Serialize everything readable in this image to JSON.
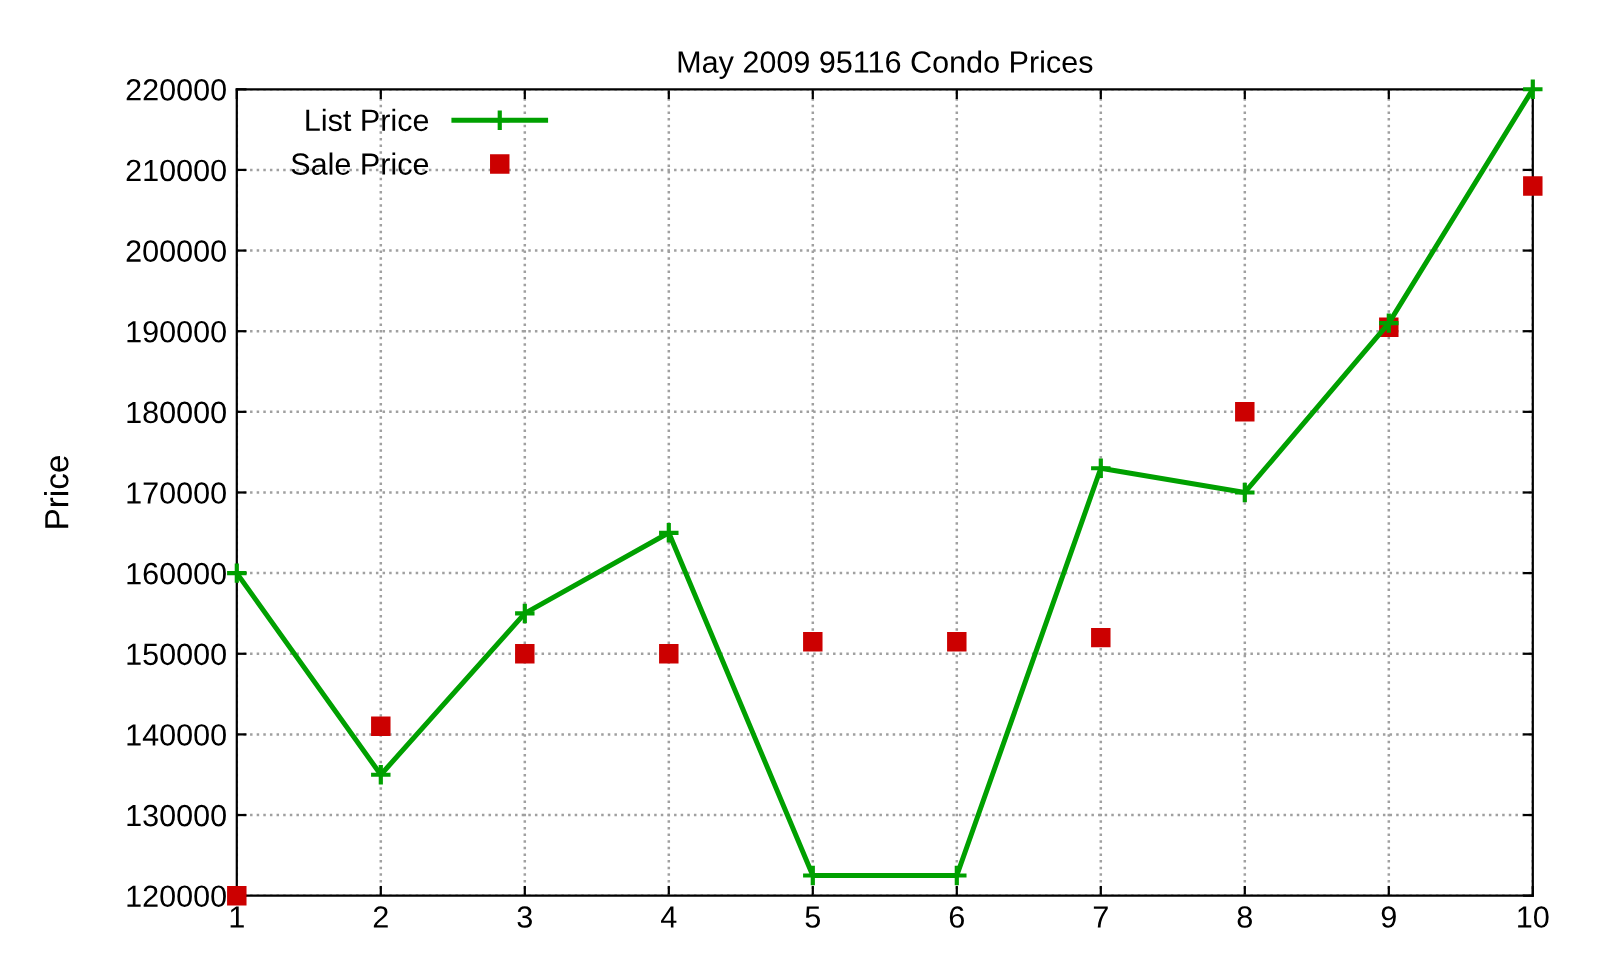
{
  "chart_data": {
    "type": "line",
    "title": "May 2009 95116 Condo Prices",
    "ylabel": "Price",
    "x": [
      1,
      2,
      3,
      4,
      5,
      6,
      7,
      8,
      9,
      10
    ],
    "series": [
      {
        "name": "List Price",
        "color": "#00a000",
        "marker": "cross",
        "values": [
          160000,
          135000,
          155000,
          165000,
          122500,
          122500,
          173000,
          170000,
          191000,
          220000
        ]
      },
      {
        "name": "Sale Price",
        "color": "#cc0000",
        "type": "scatter",
        "marker": "square",
        "values": [
          120000,
          141000,
          150000,
          150000,
          151500,
          151500,
          152000,
          180000,
          190500,
          208000
        ]
      }
    ],
    "xlim": [
      1,
      10
    ],
    "xticks": [
      1,
      2,
      3,
      4,
      5,
      6,
      7,
      8,
      9,
      10
    ],
    "ylim": [
      120000,
      220000
    ],
    "yticks": [
      120000,
      130000,
      140000,
      150000,
      160000,
      170000,
      180000,
      190000,
      200000,
      210000,
      220000
    ],
    "grid": true,
    "legend": "top left"
  }
}
